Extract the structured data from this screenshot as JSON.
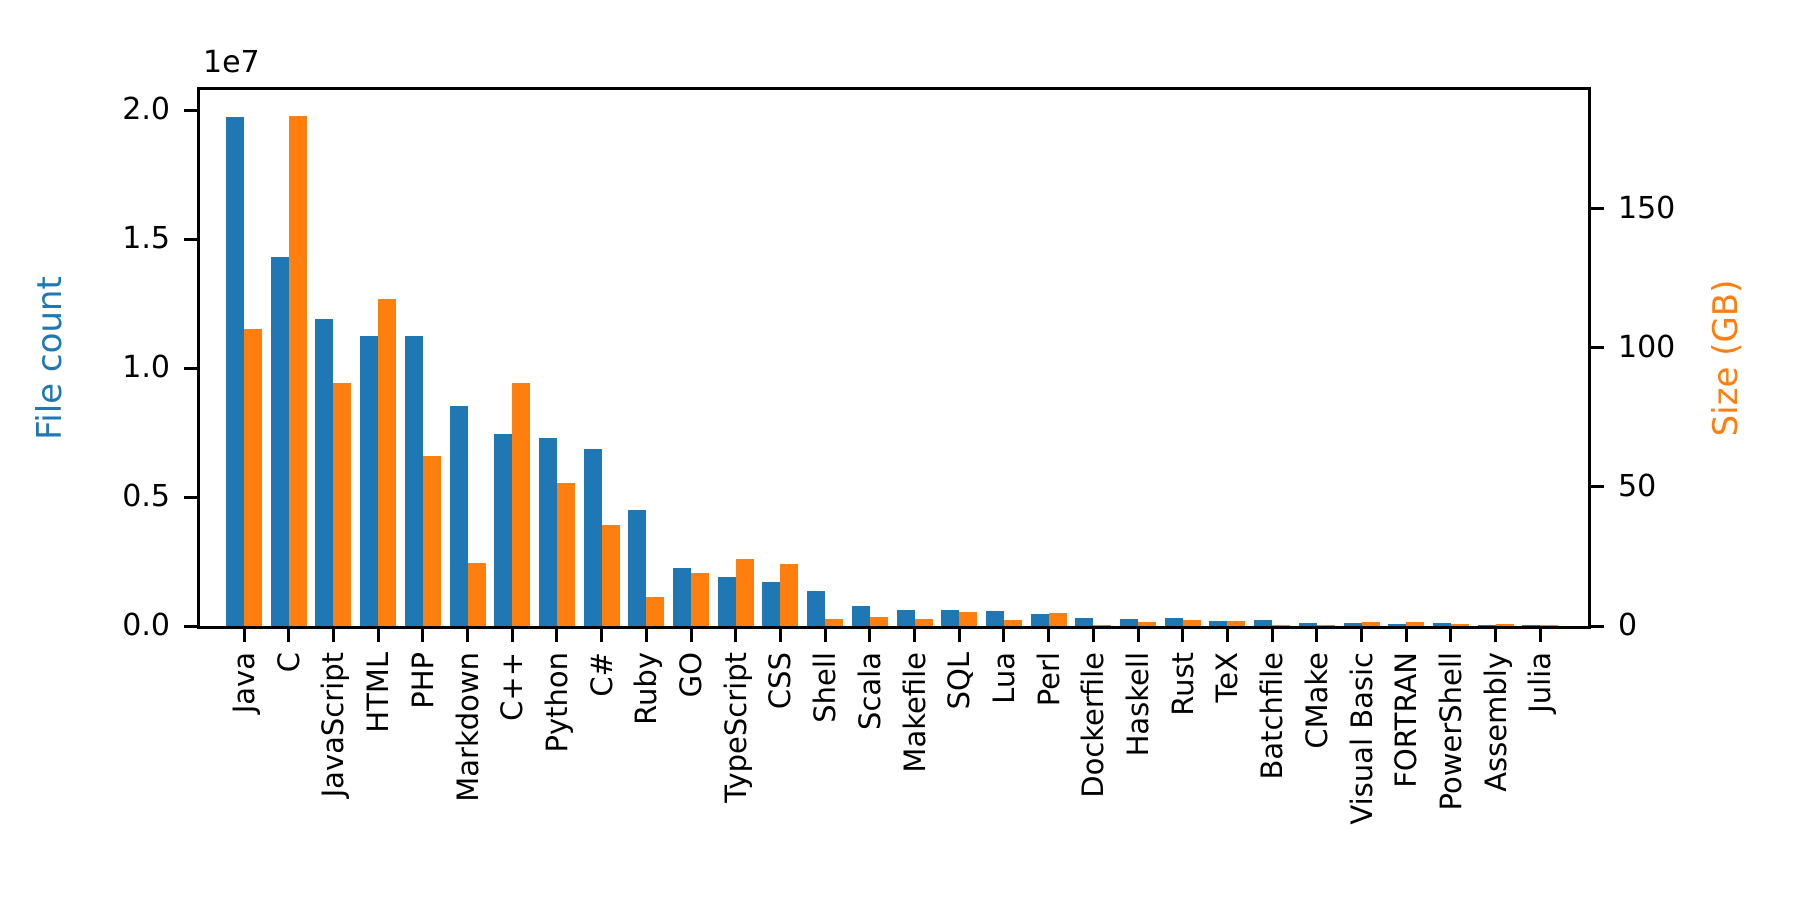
{
  "figure": {
    "background": "#ffffff",
    "offset_text": "1e7"
  },
  "chart_data": {
    "type": "bar",
    "title": "",
    "categories": [
      "Java",
      "C",
      "JavaScript",
      "HTML",
      "PHP",
      "Markdown",
      "C++",
      "Python",
      "C#",
      "Ruby",
      "GO",
      "TypeScript",
      "CSS",
      "Shell",
      "Scala",
      "Makefile",
      "SQL",
      "Lua",
      "Perl",
      "Dockerfile",
      "Haskell",
      "Rust",
      "TeX",
      "Batchfile",
      "CMake",
      "Visual Basic",
      "FORTRAN",
      "PowerShell",
      "Assembly",
      "Julia"
    ],
    "series": [
      {
        "name": "File count",
        "axis": "left",
        "color": "#1f77b4",
        "values": [
          19750000,
          14300000,
          11900000,
          11250000,
          11250000,
          8530000,
          7440000,
          7270000,
          6850000,
          4500000,
          2240000,
          1890000,
          1720000,
          1360000,
          780000,
          630000,
          630000,
          570000,
          470000,
          300000,
          270000,
          300000,
          210000,
          220000,
          120000,
          100000,
          80000,
          100000,
          40000,
          30000
        ]
      },
      {
        "name": "Size (GB)",
        "axis": "right",
        "color": "#ff7f0e",
        "values": [
          107,
          183.5,
          87.5,
          117.5,
          61,
          22.6,
          87.5,
          51.3,
          36.3,
          10.3,
          18.9,
          24,
          22.4,
          2.5,
          3.2,
          2.4,
          5.1,
          2.3,
          4.6,
          0.3,
          1.4,
          2.2,
          1.8,
          0.2,
          0.3,
          1.4,
          1.4,
          0.6,
          0.6,
          0.3
        ]
      }
    ],
    "left_axis": {
      "label": "File count",
      "color": "#1f77b4",
      "offset_text": "1e7",
      "max": 20780000,
      "ticks": [
        {
          "label": "0.0",
          "value": 0
        },
        {
          "label": "0.5",
          "value": 5000000
        },
        {
          "label": "1.0",
          "value": 10000000
        },
        {
          "label": "1.5",
          "value": 15000000
        },
        {
          "label": "2.0",
          "value": 20000000
        }
      ]
    },
    "right_axis": {
      "label": "Size (GB)",
      "color": "#ff7f0e",
      "max": 192.8,
      "ticks": [
        {
          "label": "0",
          "value": 0
        },
        {
          "label": "50",
          "value": 50
        },
        {
          "label": "100",
          "value": 100
        },
        {
          "label": "150",
          "value": 150
        }
      ]
    },
    "x_axis": {
      "tick_rotation_deg": 90,
      "grid": false,
      "legend": "none"
    }
  }
}
